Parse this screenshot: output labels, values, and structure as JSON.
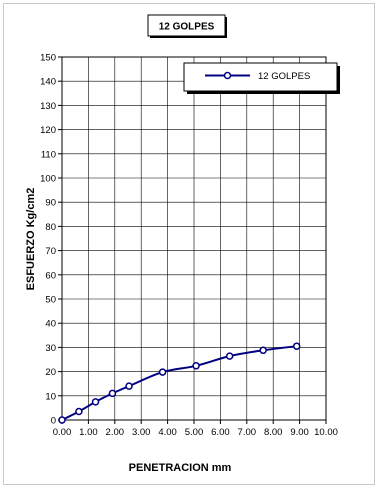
{
  "chart_data": {
    "type": "line",
    "title": "12 GOLPES",
    "xlabel": "PENETRACION mm",
    "ylabel": "ESFUERZO Kg/cm2",
    "xlim": [
      0,
      10
    ],
    "ylim": [
      0,
      150
    ],
    "x_ticks": [
      "0.00",
      "1.00",
      "2.00",
      "3.00",
      "4.00",
      "5.00",
      "6.00",
      "7.00",
      "8.00",
      "9.00",
      "10.00"
    ],
    "y_ticks": [
      "0",
      "10",
      "20",
      "30",
      "40",
      "50",
      "60",
      "70",
      "80",
      "90",
      "100",
      "110",
      "120",
      "130",
      "140",
      "150"
    ],
    "grid": true,
    "legend_position": "top-right",
    "series": [
      {
        "name": "12 GOLPES",
        "color": "#000080",
        "marker": "circle",
        "x": [
          0.0,
          0.64,
          1.27,
          1.91,
          2.54,
          3.81,
          5.08,
          6.35,
          7.62,
          8.89
        ],
        "y": [
          0.0,
          3.5,
          7.5,
          11.0,
          14.0,
          19.8,
          22.4,
          26.4,
          28.8,
          30.5
        ]
      }
    ]
  }
}
